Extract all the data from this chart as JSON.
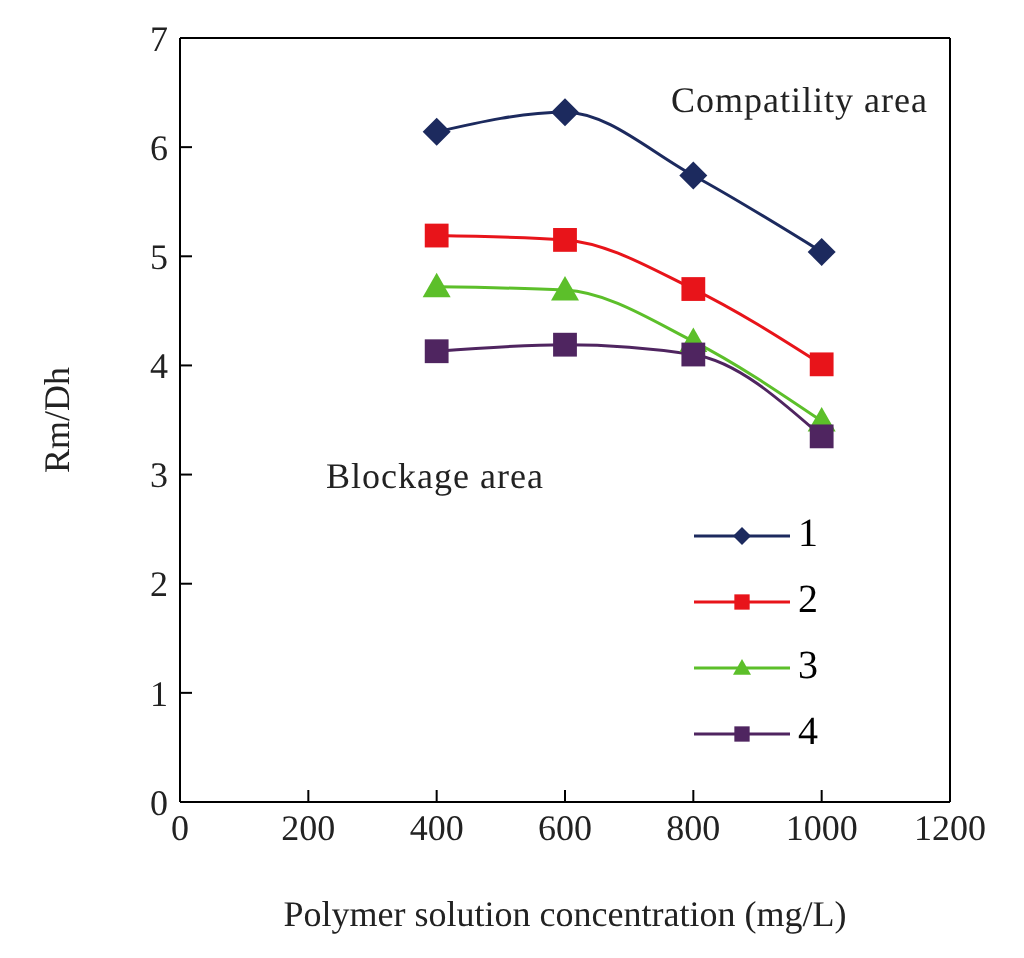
{
  "chart_data": {
    "type": "line",
    "xlabel": "Polymer solution concentration (mg/L)",
    "ylabel": "Rm/Dh",
    "x": [
      400,
      600,
      800,
      1000
    ],
    "series": [
      {
        "name": "1",
        "color": "#1c2a5e",
        "marker": "diamond",
        "values": [
          6.14,
          6.32,
          5.74,
          5.04
        ]
      },
      {
        "name": "2",
        "color": "#e8141a",
        "marker": "square",
        "values": [
          5.19,
          5.15,
          4.7,
          4.01
        ]
      },
      {
        "name": "3",
        "color": "#5cbf2a",
        "marker": "triangle",
        "values": [
          4.72,
          4.69,
          4.22,
          3.49
        ]
      },
      {
        "name": "4",
        "color": "#4f2560",
        "marker": "square",
        "values": [
          4.13,
          4.19,
          4.1,
          3.35
        ]
      }
    ],
    "xlim": [
      0,
      1200
    ],
    "xticks": [
      0,
      200,
      400,
      600,
      800,
      1000,
      1200
    ],
    "ylim": [
      0,
      7
    ],
    "yticks": [
      0,
      1,
      2,
      3,
      4,
      5,
      6,
      7
    ],
    "annotations": [
      "Compatility area",
      "Blockage area"
    ],
    "legend": "bottom right",
    "grid": false
  }
}
